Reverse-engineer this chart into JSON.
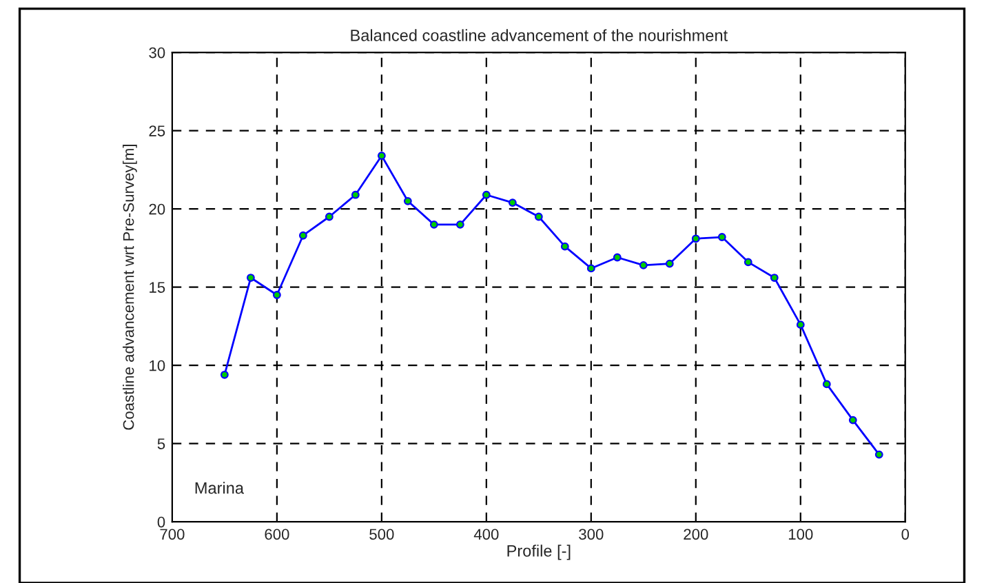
{
  "chart_data": {
    "type": "line",
    "title": "Balanced coastline advancement of the nourishment",
    "xlabel": "Profile [-]",
    "ylabel": "Coastline advancement wrt Pre-Survey[m]",
    "x": [
      650,
      625,
      600,
      575,
      550,
      525,
      500,
      475,
      450,
      425,
      400,
      375,
      350,
      325,
      300,
      275,
      250,
      225,
      200,
      175,
      150,
      125,
      100,
      75,
      50,
      25
    ],
    "series": [
      {
        "color": "#0000ff",
        "values": [
          9.4,
          15.6,
          14.5,
          18.3,
          19.5,
          20.9,
          23.4,
          20.5,
          19.0,
          19.0,
          20.9,
          20.4,
          19.5,
          17.6,
          16.2,
          16.9,
          16.4,
          16.5,
          18.1,
          18.2,
          16.6,
          15.6,
          12.6,
          8.8,
          6.5,
          4.3
        ]
      }
    ],
    "xlim": [
      700,
      0
    ],
    "xticks": [
      700,
      600,
      500,
      400,
      300,
      200,
      100,
      0
    ],
    "ylim": [
      0,
      30
    ],
    "yticks": [
      0,
      5,
      10,
      15,
      20,
      25,
      30
    ],
    "grid": true,
    "marker": "circle",
    "line_style": "solid",
    "annotations": [
      "Marina"
    ]
  }
}
